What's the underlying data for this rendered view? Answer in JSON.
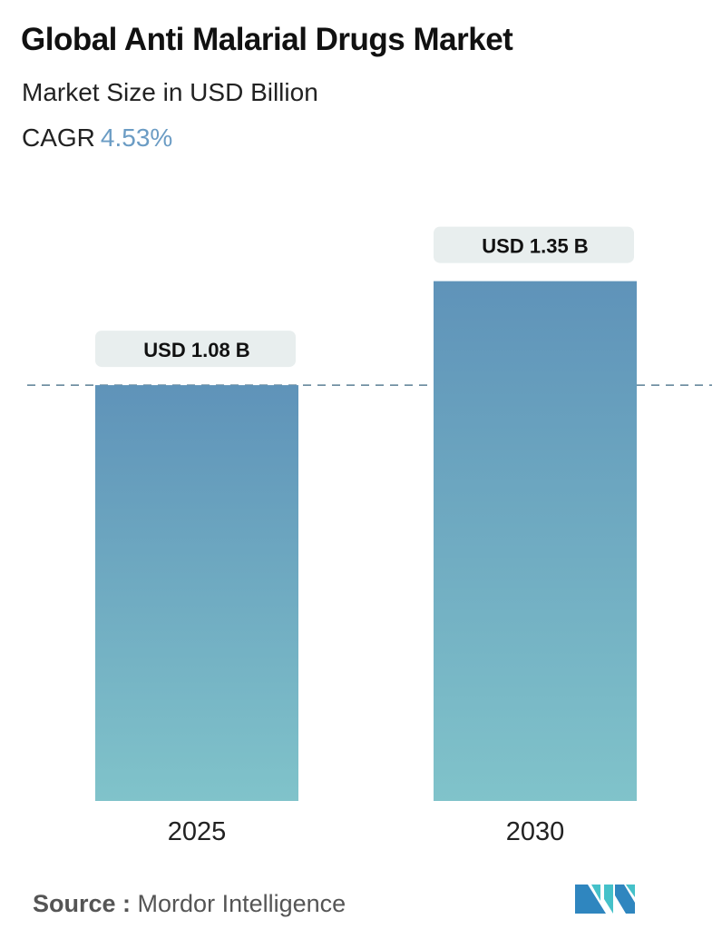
{
  "header": {
    "title": "Global Anti Malarial Drugs Market",
    "subtitle": "Market Size in USD Billion",
    "cagr_label": "CAGR",
    "cagr_value": "4.53%"
  },
  "chart_data": {
    "type": "bar",
    "title": "Global Anti Malarial Drugs Market",
    "ylabel": "Market Size in USD Billion",
    "categories": [
      "2025",
      "2030"
    ],
    "values": [
      1.08,
      1.35
    ],
    "data_labels": [
      "USD 1.08 B",
      "USD 1.35 B"
    ],
    "ylim": [
      0,
      1.45
    ],
    "grid": false,
    "reference_line": {
      "value": 1.08,
      "style": "dashed"
    },
    "colors": {
      "bar_top": "#5f93b9",
      "bar_bottom": "#80c3ca",
      "label_bg": "#e8eeee",
      "cagr": "#6b9cc4"
    }
  },
  "footer": {
    "source_label": "Source :",
    "source_value": "Mordor Intelligence",
    "logo_text": "Mordor Intelligence"
  }
}
